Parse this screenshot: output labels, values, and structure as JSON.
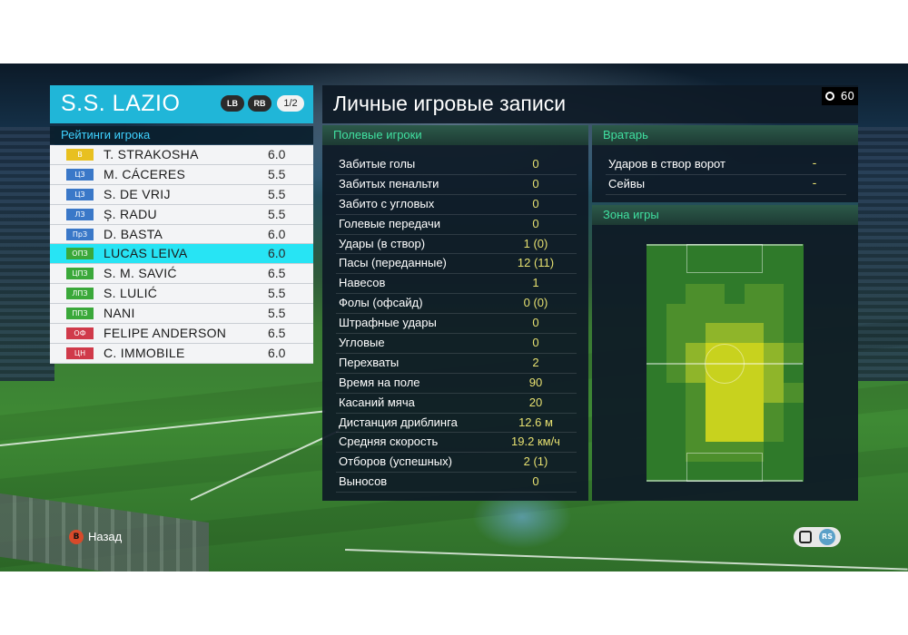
{
  "team": {
    "name": "S.S. LAZIO",
    "btn_lb": "LB",
    "btn_rb": "RB",
    "page": "1/2"
  },
  "ratings_title": "Рейтинги игрока",
  "players": [
    {
      "pos": "В",
      "pos_color": "#e8c020",
      "name": "T. STRAKOSHA",
      "rating": "6.0",
      "selected": false
    },
    {
      "pos": "ЦЗ",
      "pos_color": "#3a78c8",
      "name": "M. CÁCERES",
      "rating": "5.5",
      "selected": false
    },
    {
      "pos": "ЦЗ",
      "pos_color": "#3a78c8",
      "name": "S. DE VRIJ",
      "rating": "5.5",
      "selected": false
    },
    {
      "pos": "ЛЗ",
      "pos_color": "#3a78c8",
      "name": "Ș. RADU",
      "rating": "5.5",
      "selected": false
    },
    {
      "pos": "ПрЗ",
      "pos_color": "#3a78c8",
      "name": "D. BASTA",
      "rating": "6.0",
      "selected": false
    },
    {
      "pos": "ОПЗ",
      "pos_color": "#3aa83a",
      "name": "LUCAS LEIVA",
      "rating": "6.0",
      "selected": true
    },
    {
      "pos": "ЦПЗ",
      "pos_color": "#3aa83a",
      "name": "S. M. SAVIĆ",
      "rating": "6.5",
      "selected": false
    },
    {
      "pos": "ЛПЗ",
      "pos_color": "#3aa83a",
      "name": "S. LULIĆ",
      "rating": "5.5",
      "selected": false
    },
    {
      "pos": "ППЗ",
      "pos_color": "#3aa83a",
      "name": "NANI",
      "rating": "5.5",
      "selected": false
    },
    {
      "pos": "ОФ",
      "pos_color": "#d03a4a",
      "name": "FELIPE ANDERSON",
      "rating": "6.5",
      "selected": false
    },
    {
      "pos": "ЦН",
      "pos_color": "#d03a4a",
      "name": "C. IMMOBILE",
      "rating": "6.0",
      "selected": false
    }
  ],
  "main_title": "Личные игровые записи",
  "timer": "60",
  "field": {
    "title": "Полевые игроки",
    "rows": [
      {
        "label": "Забитые голы",
        "value": "0"
      },
      {
        "label": "Забитых пенальти",
        "value": "0"
      },
      {
        "label": "Забито с угловых",
        "value": "0"
      },
      {
        "label": "Голевые передачи",
        "value": "0"
      },
      {
        "label": "Удары (в створ)",
        "value": "1 (0)"
      },
      {
        "label": "Пасы (переданные)",
        "value": "12 (11)"
      },
      {
        "label": "Навесов",
        "value": "1"
      },
      {
        "label": "Фолы (офсайд)",
        "value": "0 (0)"
      },
      {
        "label": "Штрафные удары",
        "value": "0"
      },
      {
        "label": "Угловые",
        "value": "0"
      },
      {
        "label": "Перехваты",
        "value": "2"
      },
      {
        "label": "Время на поле",
        "value": "90"
      },
      {
        "label": "Касаний мяча",
        "value": "20"
      },
      {
        "label": "Дистанция дриблинга",
        "value": "12.6 м"
      },
      {
        "label": "Средняя скорость",
        "value": "19.2 км/ч"
      },
      {
        "label": "Отборов (успешных)",
        "value": "2 (1)"
      },
      {
        "label": "Выносов",
        "value": "0"
      }
    ]
  },
  "goalkeeper": {
    "title": "Вратарь",
    "rows": [
      {
        "label": "Ударов в створ ворот",
        "value": "-"
      },
      {
        "label": "Сейвы",
        "value": "-"
      }
    ]
  },
  "zone": {
    "title": "Зона игры"
  },
  "bottom": {
    "back_key": "B",
    "back_label": "Назад",
    "rs_key": "RS"
  }
}
